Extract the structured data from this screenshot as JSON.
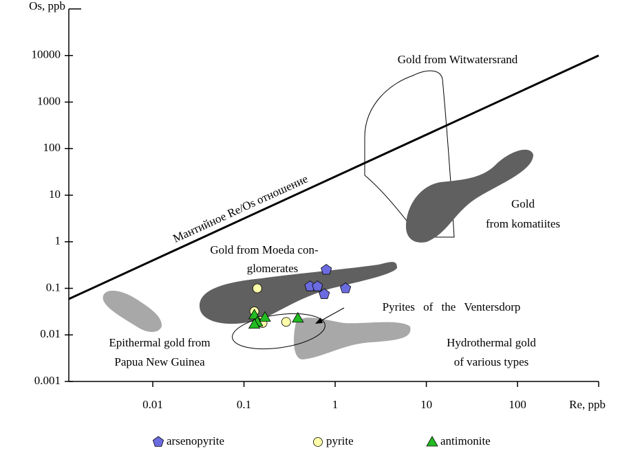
{
  "chart_data": {
    "type": "scatter",
    "x_label": "Re, ppb",
    "y_label": "Os, ppb",
    "log_x": true,
    "log_y": true,
    "xlim": [
      0.0012,
      776
    ],
    "ylim": [
      0.001,
      100000
    ],
    "xticks": [
      0.01,
      0.1,
      1,
      10,
      100
    ],
    "yticks": [
      0.001,
      0.01,
      0.1,
      1,
      10,
      100,
      1000,
      10000
    ],
    "line": {
      "name": "Мантийное Re/Os отношение",
      "color": "#000000",
      "x": [
        0.0012,
        776
      ],
      "values": [
        0.059,
        10000
      ]
    },
    "annotations": [
      "Gold from Witwatersrand",
      "Gold",
      "from komatiites",
      "Gold from Moeda con-",
      "glomerates",
      "Pyrites of the Ventersdorp",
      "Epithermal gold from",
      "Papua New Guinea",
      "Hydrothermal gold",
      "of various types"
    ],
    "series": [
      {
        "name": "arsenopyrite",
        "color": "#6b6be0",
        "marker": "pentagon",
        "x": [
          0.8,
          0.53,
          0.64,
          0.76,
          1.3
        ],
        "values": [
          0.25,
          0.11,
          0.11,
          0.075,
          0.1
        ]
      },
      {
        "name": "pyrite",
        "color": "#ffffaa",
        "marker": "circle",
        "x": [
          0.14,
          0.13,
          0.15,
          0.16,
          0.29
        ],
        "values": [
          0.1,
          0.032,
          0.02,
          0.018,
          0.019
        ]
      },
      {
        "name": "antimonite",
        "color": "#22bb22",
        "marker": "triangle",
        "x": [
          0.13,
          0.14,
          0.17,
          0.39,
          0.13
        ],
        "values": [
          0.027,
          0.019,
          0.024,
          0.023,
          0.017
        ]
      }
    ]
  }
}
